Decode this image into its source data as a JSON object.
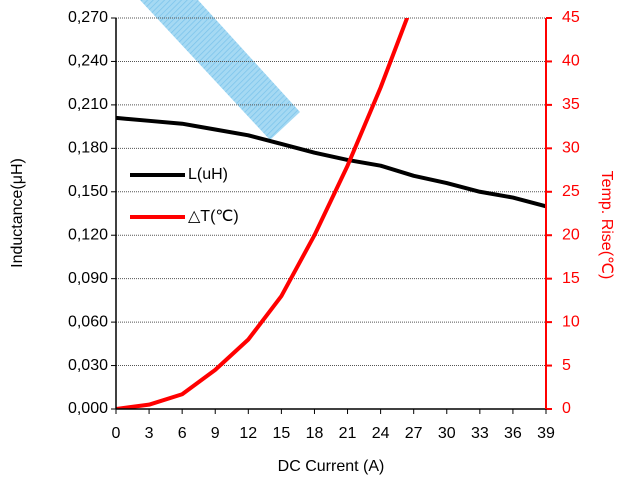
{
  "chart_data": {
    "type": "line",
    "x": [
      0,
      3,
      6,
      9,
      12,
      15,
      18,
      21,
      24,
      27,
      30,
      33,
      36,
      39
    ],
    "xlim": [
      0,
      39
    ],
    "xticks": [
      0,
      3,
      6,
      9,
      12,
      15,
      18,
      21,
      24,
      27,
      30,
      33,
      36,
      39
    ],
    "xlabel": "DC Current (A)",
    "ylabel": "Inductance(μH)",
    "y2label": "Temp. Rise(℃)",
    "ylim": [
      0,
      0.27
    ],
    "yticks": [
      {
        "value": 0,
        "label": "0,000"
      },
      {
        "value": 0.03,
        "label": "0,030"
      },
      {
        "value": 0.06,
        "label": "0,060"
      },
      {
        "value": 0.09,
        "label": "0,090"
      },
      {
        "value": 0.12,
        "label": "0,120"
      },
      {
        "value": 0.15,
        "label": "0,150"
      },
      {
        "value": 0.18,
        "label": "0,180"
      },
      {
        "value": 0.21,
        "label": "0,210"
      },
      {
        "value": 0.24,
        "label": "0,240"
      },
      {
        "value": 0.27,
        "label": "0,270"
      }
    ],
    "y2lim": [
      0,
      45
    ],
    "y2ticks": [
      0,
      5,
      10,
      15,
      20,
      25,
      30,
      35,
      40,
      45
    ],
    "y2color": "#ff0000",
    "grid": true,
    "series": [
      {
        "name": "L(uH)",
        "color": "#000000",
        "values": [
          0.201,
          0.199,
          0.197,
          0.193,
          0.189,
          0.183,
          0.177,
          0.172,
          0.168,
          0.161,
          0.156,
          0.15,
          0.146,
          0.14
        ]
      },
      {
        "name": "△T(℃)",
        "color": "#ff0000",
        "axis": "y2",
        "values": [
          0,
          0.5,
          1.7,
          4.5,
          8,
          13,
          20,
          28,
          37,
          47,
          null,
          null,
          null,
          null
        ]
      }
    ]
  }
}
